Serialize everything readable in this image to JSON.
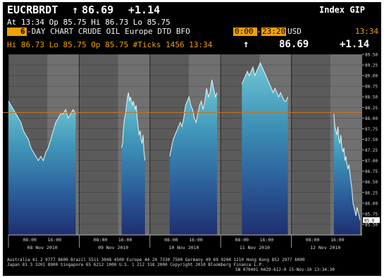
{
  "header": {
    "security": "EUCRBRDT",
    "price_arrow": "↑",
    "price": "86.69",
    "change": "+1.14",
    "index_label": "Index GIP"
  },
  "row2": {
    "text": "At 13:34  Op 85.75 Hi 86.73 Lo 85.75"
  },
  "row3": {
    "days_num": "6",
    "chart_title": "-DAY CHART CRUDE OIL Europe DTD BFO",
    "time_start": "0:00",
    "time_sep": "-",
    "time_end": "23:20",
    "currency": "USD",
    "time_right": "13:34"
  },
  "row4": {
    "stats": "Hi  86.73 Lo  85.75 Op  85.75 #Ticks 1456  13:34",
    "arrow": "↑",
    "last": "86.69",
    "change": "+1.14"
  },
  "chart_data": {
    "type": "line",
    "ylim": [
      85.25,
      89.5
    ],
    "yticks": [
      "89.50",
      "89.25",
      "89.00",
      "88.75",
      "88.50",
      "88.25",
      "88.00",
      "87.75",
      "87.50",
      "87.25",
      "87.00",
      "86.75",
      "86.50",
      "86.25",
      "86.00",
      "85.75",
      "85.50"
    ],
    "reference_line": 88.13,
    "last_value_label": "85.6",
    "days": [
      {
        "time_labels": [
          "08:00",
          "16:00"
        ],
        "date": "08 Nov 2010"
      },
      {
        "time_labels": [
          "08:00",
          "16:00"
        ],
        "date": "09 Nov 2010"
      },
      {
        "time_labels": [
          "08:00",
          "16:00"
        ],
        "date": "10 Nov 2010"
      },
      {
        "time_labels": [
          "08:00",
          "16:00"
        ],
        "date": "11 Nov 2010"
      },
      {
        "time_labels": [
          "08:00",
          "16:00"
        ],
        "date": "12 Nov 2010"
      }
    ],
    "series": [
      {
        "values": [
          88.4,
          88.3,
          88.2,
          88.1,
          88.0,
          87.9,
          87.7,
          87.6,
          87.5,
          87.3,
          87.2,
          87.1,
          87.0,
          87.1,
          87.0,
          87.2,
          87.3,
          87.5,
          87.7,
          87.9,
          88.0,
          88.1,
          88.1,
          88.2,
          88.0,
          88.1,
          88.2,
          88.1
        ]
      },
      {
        "values": [
          87.3,
          87.4,
          87.8,
          88.0,
          88.1,
          88.3,
          88.5,
          88.6,
          88.4,
          88.5,
          88.4,
          88.3,
          88.4,
          88.3,
          88.2,
          88.3,
          88.0,
          87.8,
          87.6,
          87.7,
          87.5,
          87.4,
          87.6,
          87.2,
          87.0
        ]
      },
      {
        "values": [
          87.1,
          87.3,
          87.5,
          87.6,
          87.7,
          87.8,
          87.9,
          87.8,
          88.0,
          88.3,
          88.4,
          88.5,
          88.3,
          88.2,
          88.0,
          87.9,
          88.1,
          88.3,
          88.4,
          88.2,
          88.4,
          88.7,
          88.5,
          88.6,
          88.9,
          88.7,
          88.5,
          88.6
        ]
      },
      {
        "values": [
          88.8,
          88.9,
          89.0,
          89.1,
          89.0,
          89.1,
          89.2,
          89.0,
          89.1,
          89.2,
          89.3,
          89.2,
          89.1,
          89.0,
          88.9,
          88.8,
          88.7,
          88.6,
          88.7,
          88.6,
          88.5,
          88.6,
          88.5,
          88.4,
          88.4,
          88.5
        ]
      },
      {
        "values": [
          88.1,
          87.8,
          87.7,
          87.6,
          87.8,
          87.5,
          87.4,
          87.6,
          87.3,
          87.2,
          87.3,
          87.0,
          87.1,
          86.9,
          86.8,
          86.9,
          86.7,
          86.5,
          86.3,
          86.0,
          85.9,
          85.8,
          85.7,
          85.9,
          85.8,
          85.7,
          85.6
        ]
      }
    ]
  },
  "footer": {
    "line1": "Australia 61 2 9777 8600 Brazil 5511 3048 4500 Europe 44 20 7330 7500 Germany 49 69 9204 1210 Hong Kong 852 2977 6000",
    "line2": "Japan 81 3 3201 8900        Singapore 65 6212 1000        U.S. 1 212 318 2000          Copyright 2010 Bloomberg Finance L.P.",
    "line3": "SN 070401 H429-612-0 15-Nov-10 13:34:30"
  },
  "colors": {
    "background": "#000000",
    "amber": "#f0a000",
    "ref_line": "#c87020",
    "night_band": "#5a5a5a",
    "day_band": "#707070"
  }
}
